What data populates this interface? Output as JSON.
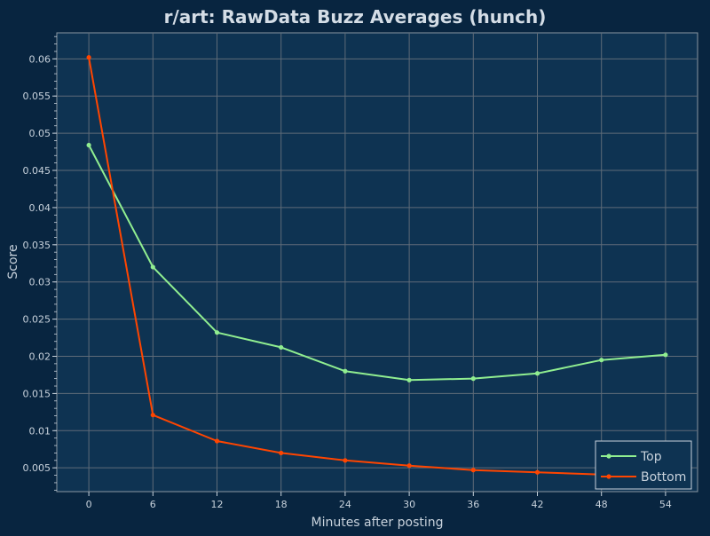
{
  "chart_data": {
    "type": "line",
    "title": "r/art: RawData Buzz Averages (hunch)",
    "xlabel": "Minutes after posting",
    "ylabel": "Score",
    "x": [
      0,
      6,
      12,
      18,
      24,
      30,
      36,
      42,
      48,
      54
    ],
    "xticks": [
      "0",
      "6",
      "12",
      "18",
      "24",
      "30",
      "36",
      "42",
      "48",
      "54"
    ],
    "yticks": [
      "0.005",
      "0.01",
      "0.015",
      "0.02",
      "0.025",
      "0.03",
      "0.035",
      "0.04",
      "0.045",
      "0.05",
      "0.055",
      "0.06"
    ],
    "xlim": [
      -3,
      57
    ],
    "ylim": [
      0.0018,
      0.0635
    ],
    "grid": true,
    "legend_position": "bottom-right",
    "series": [
      {
        "name": "Top",
        "color": "#90ee90",
        "values": [
          0.0484,
          0.032,
          0.0232,
          0.0212,
          0.018,
          0.0168,
          0.017,
          0.0177,
          0.0195,
          0.0202
        ]
      },
      {
        "name": "Bottom",
        "color": "#ff4500",
        "values": [
          0.0602,
          0.0121,
          0.0086,
          0.007,
          0.006,
          0.0053,
          0.0047,
          0.0044,
          0.0041,
          0.0039
        ]
      }
    ],
    "colors": {
      "background": "#082540",
      "plot_background": "#0e3352",
      "grid": "#5e6b78",
      "text": "#c8d2dc",
      "title": "#d4dde6"
    }
  }
}
